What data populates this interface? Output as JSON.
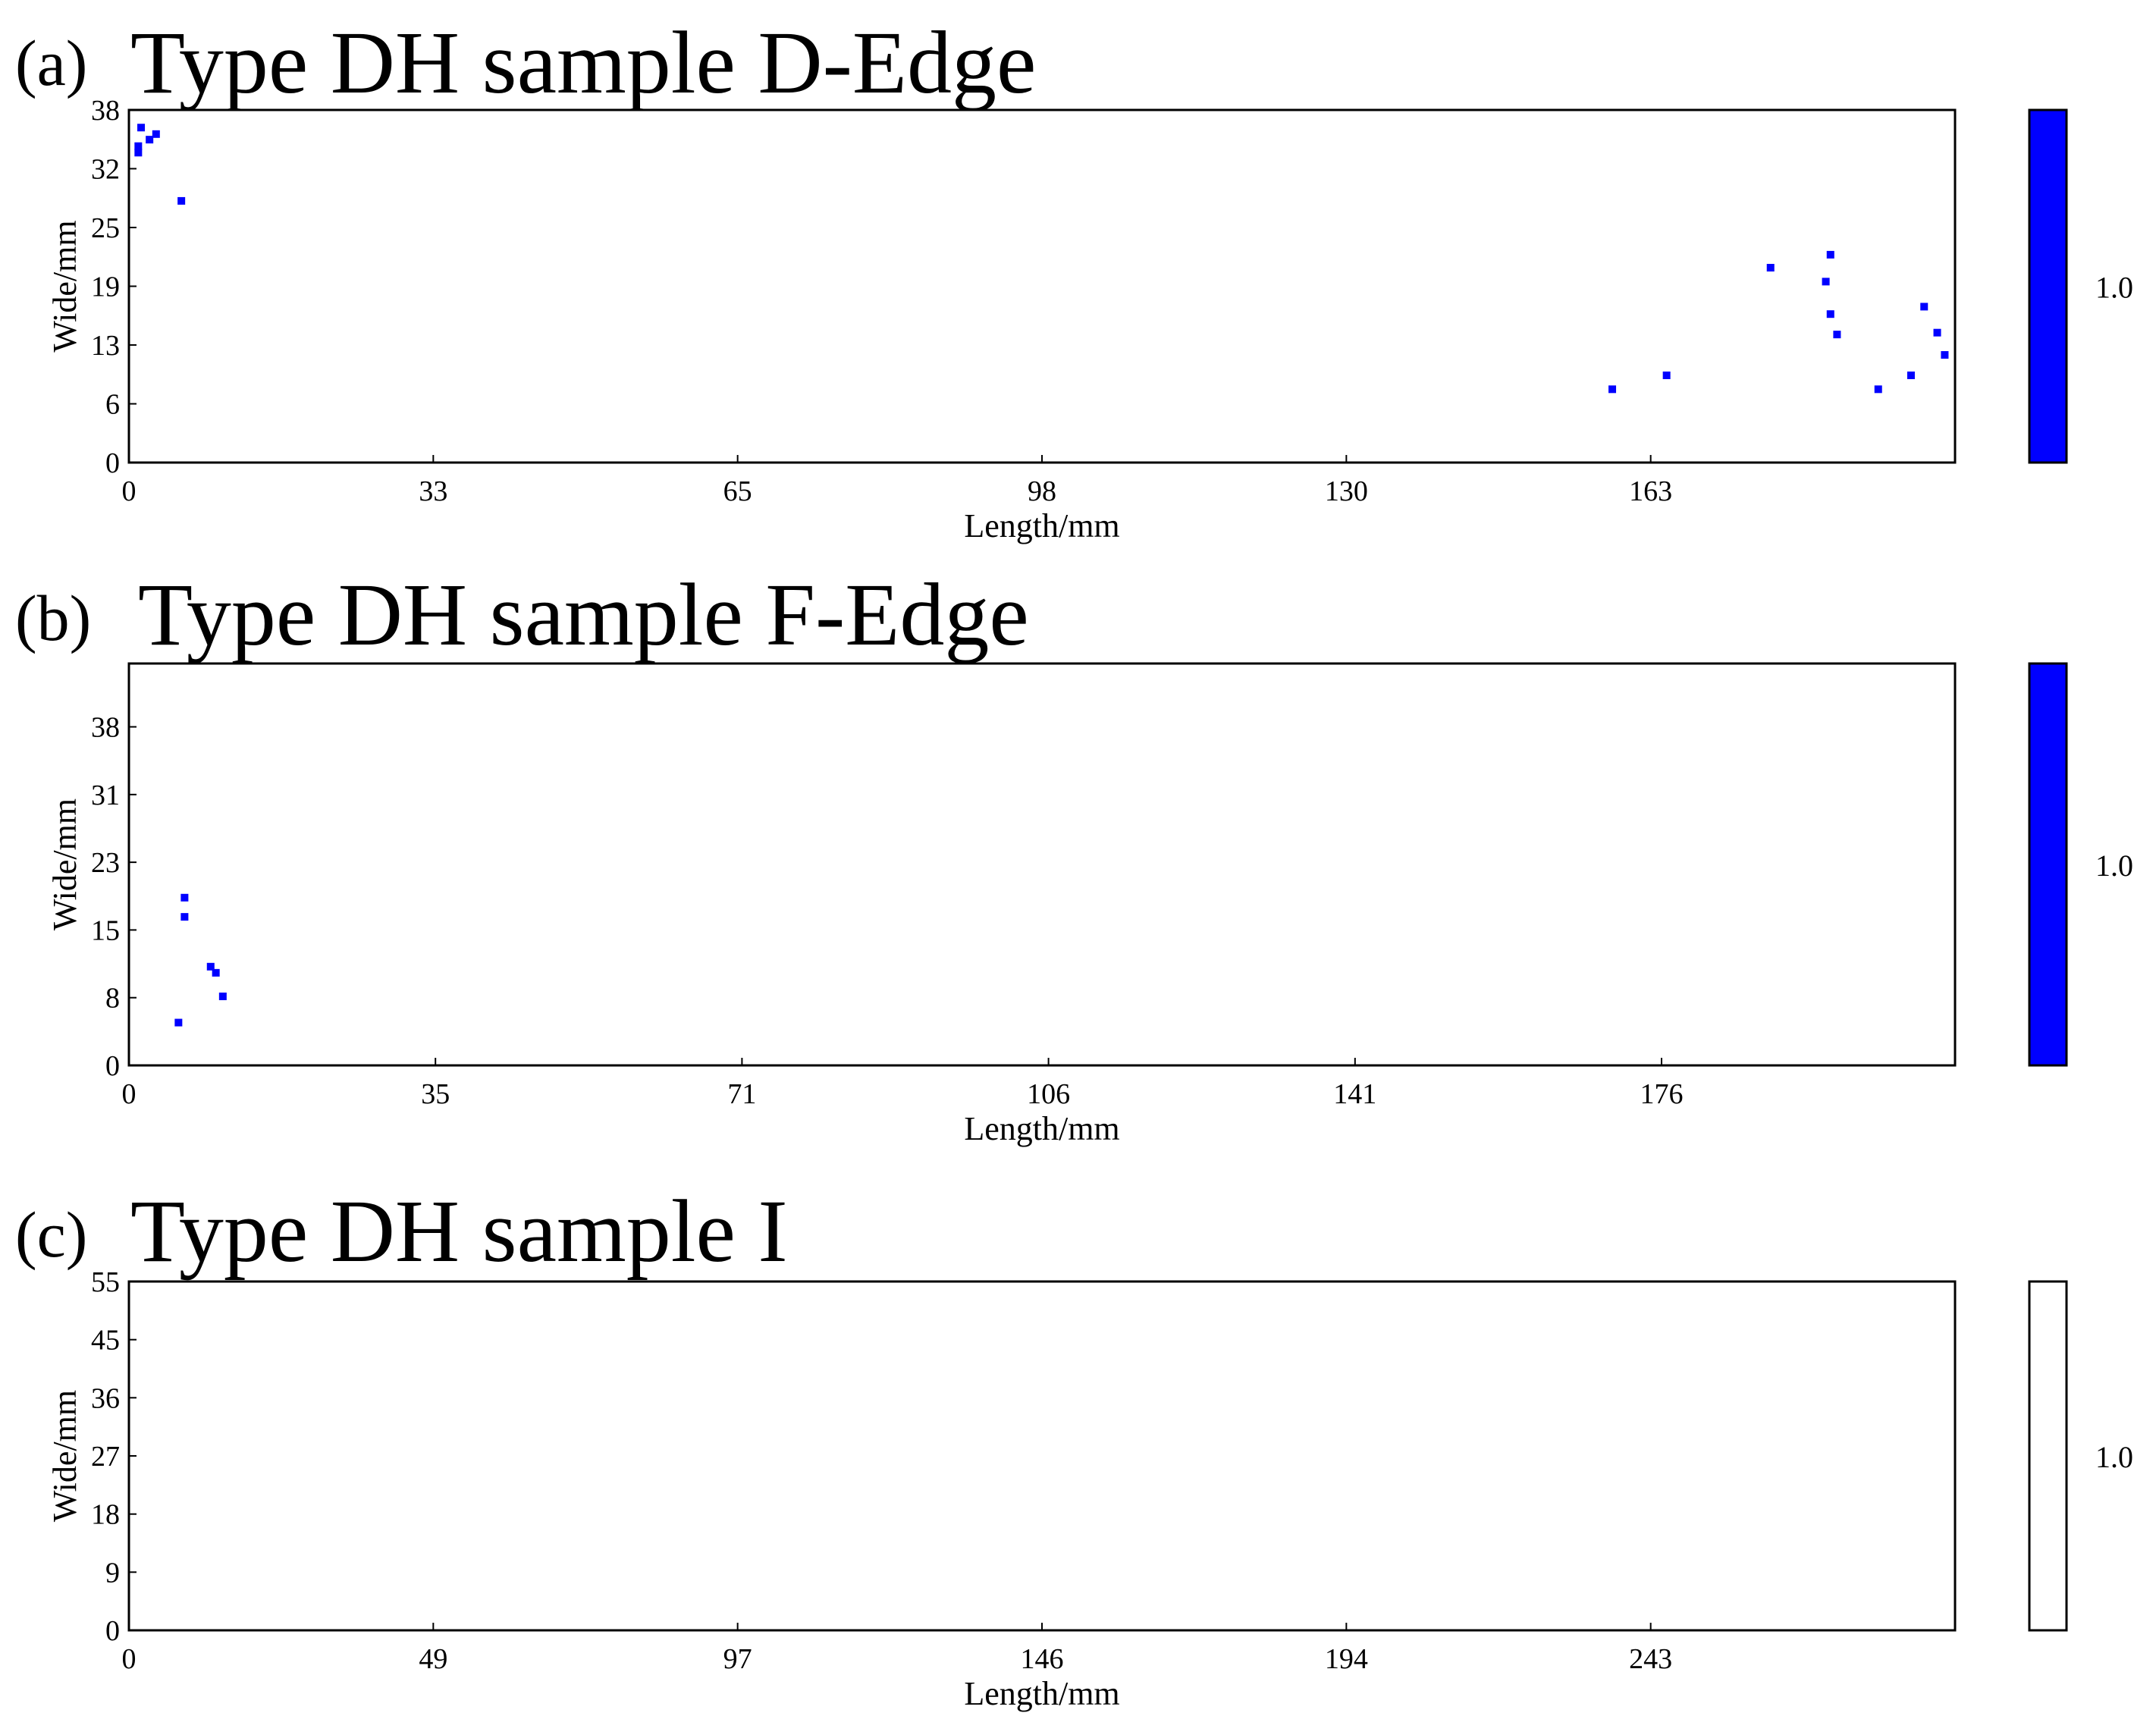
{
  "figure": {
    "panels": [
      {
        "letter": "(a)",
        "title": "Type DH sample D-Edge"
      },
      {
        "letter": "(b)",
        "title": "Type DH sample F-Edge"
      },
      {
        "letter": "(c)",
        "title": "Type DH sample I"
      }
    ]
  },
  "chart_data": [
    {
      "type": "scatter",
      "title": "Type DH sample D-Edge",
      "xlabel": "Length/mm",
      "ylabel": "Wide/mm",
      "xlim": [
        0,
        195
      ],
      "ylim": [
        0,
        38
      ],
      "x_ticks": [
        "0",
        "33",
        "65",
        "98",
        "130",
        "163"
      ],
      "x_tick_values": [
        0,
        32.5,
        65,
        97.5,
        130,
        162.5
      ],
      "y_ticks": [
        "0",
        "6",
        "13",
        "19",
        "25",
        "32",
        "38"
      ],
      "y_tick_values": [
        0,
        6.33,
        12.67,
        19,
        25.33,
        31.67,
        38
      ],
      "grid": false,
      "marker_color": "#0000ff",
      "colorbar": {
        "label": "1.0",
        "color": "#0000ff"
      },
      "points": [
        {
          "x": 1.3,
          "y": 36.1
        },
        {
          "x": 1.0,
          "y": 34.1
        },
        {
          "x": 1.0,
          "y": 33.4
        },
        {
          "x": 2.2,
          "y": 34.8
        },
        {
          "x": 2.9,
          "y": 35.4
        },
        {
          "x": 5.6,
          "y": 28.2
        },
        {
          "x": 158.4,
          "y": 7.9
        },
        {
          "x": 164.2,
          "y": 9.4
        },
        {
          "x": 175.3,
          "y": 21.0
        },
        {
          "x": 181.2,
          "y": 19.5
        },
        {
          "x": 181.7,
          "y": 22.4
        },
        {
          "x": 181.7,
          "y": 16.0
        },
        {
          "x": 182.4,
          "y": 13.8
        },
        {
          "x": 186.8,
          "y": 7.9
        },
        {
          "x": 190.3,
          "y": 9.4
        },
        {
          "x": 191.7,
          "y": 16.8
        },
        {
          "x": 193.1,
          "y": 14.0
        },
        {
          "x": 193.9,
          "y": 11.6
        }
      ]
    },
    {
      "type": "scatter",
      "title": "Type DH sample F-Edge",
      "xlabel": "Length/mm",
      "ylabel": "Wide/mm",
      "xlim": [
        0,
        210
      ],
      "ylim": [
        0,
        46
      ],
      "x_ticks": [
        "0",
        "35",
        "71",
        "106",
        "141",
        "176"
      ],
      "x_tick_values": [
        0,
        35.25,
        70.5,
        105.75,
        141,
        176.25
      ],
      "y_ticks": [
        "0",
        "8",
        "15",
        "23",
        "31",
        "38"
      ],
      "y_tick_values": [
        0,
        7.75,
        15.5,
        23.25,
        31,
        38.75
      ],
      "grid": false,
      "marker_color": "#0000ff",
      "colorbar": {
        "label": "1.0",
        "color": "#0000ff"
      },
      "points": [
        {
          "x": 5.7,
          "y": 4.9
        },
        {
          "x": 6.4,
          "y": 19.2
        },
        {
          "x": 6.4,
          "y": 17.0
        },
        {
          "x": 9.4,
          "y": 11.3
        },
        {
          "x": 10.0,
          "y": 10.6
        },
        {
          "x": 10.8,
          "y": 7.9
        }
      ]
    },
    {
      "type": "scatter",
      "title": "Type DH sample I",
      "xlabel": "Length/mm",
      "ylabel": "Wide/mm",
      "xlim": [
        0,
        291
      ],
      "ylim": [
        0,
        55
      ],
      "x_ticks": [
        "0",
        "49",
        "97",
        "146",
        "194",
        "243"
      ],
      "x_tick_values": [
        0,
        48.5,
        97,
        145.5,
        194,
        242.5
      ],
      "y_ticks": [
        "0",
        "9",
        "18",
        "27",
        "36",
        "45",
        "55"
      ],
      "y_tick_values": [
        0,
        9.17,
        18.33,
        27.5,
        36.67,
        45.83,
        55
      ],
      "grid": false,
      "marker_color": "#0000ff",
      "colorbar": {
        "label": "1.0",
        "color": "#ffffff"
      },
      "points": []
    }
  ]
}
